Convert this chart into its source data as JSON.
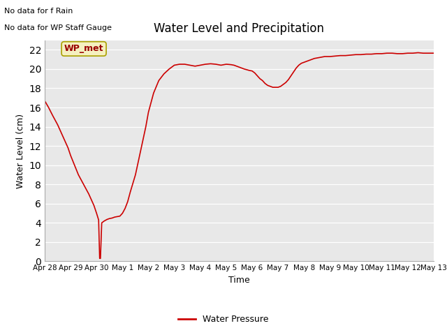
{
  "title": "Water Level and Precipitation",
  "xlabel": "Time",
  "ylabel": "Water Level (cm)",
  "ylim": [
    0,
    23
  ],
  "yticks": [
    0,
    2,
    4,
    6,
    8,
    10,
    12,
    14,
    16,
    18,
    20,
    22
  ],
  "fig_bg_color": "#ffffff",
  "plot_bg_color": "#e8e8e8",
  "line_color": "#cc0000",
  "legend_label": "Water Pressure",
  "no_data_text1": "No data for f Rain",
  "no_data_text2": "No data for WP Staff Gauge",
  "wp_met_label": "WP_met",
  "x_tick_labels": [
    "Apr 28",
    "Apr 29",
    "Apr 30",
    "May 1",
    "May 2",
    "May 3",
    "May 4",
    "May 5",
    "May 6",
    "May 7",
    "May 8",
    "May 9",
    "May 10",
    "May 11",
    "May 12",
    "May 13"
  ],
  "x_values": [
    0,
    1,
    2,
    3,
    4,
    5,
    6,
    7,
    8,
    9,
    10,
    11,
    12,
    13,
    14,
    15
  ],
  "water_level": {
    "x": [
      0.0,
      0.15,
      0.3,
      0.5,
      0.7,
      0.9,
      1.0,
      1.15,
      1.3,
      1.5,
      1.7,
      1.9,
      2.0,
      2.08,
      2.12,
      2.15,
      2.2,
      2.25,
      2.3,
      2.4,
      2.5,
      2.6,
      2.7,
      2.8,
      2.9,
      3.0,
      3.1,
      3.2,
      3.3,
      3.5,
      3.7,
      3.9,
      4.0,
      4.1,
      4.2,
      4.4,
      4.6,
      4.8,
      5.0,
      5.2,
      5.4,
      5.6,
      5.8,
      6.0,
      6.2,
      6.4,
      6.6,
      6.8,
      7.0,
      7.1,
      7.2,
      7.3,
      7.5,
      7.7,
      7.9,
      8.0,
      8.1,
      8.2,
      8.3,
      8.4,
      8.5,
      8.6,
      8.7,
      8.8,
      8.9,
      9.0,
      9.1,
      9.2,
      9.3,
      9.4,
      9.5,
      9.6,
      9.7,
      9.8,
      9.9,
      10.0,
      10.2,
      10.4,
      10.6,
      10.8,
      11.0,
      11.2,
      11.4,
      11.6,
      11.8,
      12.0,
      12.2,
      12.4,
      12.6,
      12.8,
      13.0,
      13.2,
      13.4,
      13.6,
      13.8,
      14.0,
      14.2,
      14.4,
      14.6,
      14.8,
      15.0
    ],
    "y": [
      16.7,
      16.0,
      15.2,
      14.2,
      13.0,
      11.8,
      11.0,
      10.0,
      9.0,
      8.0,
      7.0,
      5.8,
      5.0,
      4.3,
      0.3,
      0.3,
      4.0,
      4.1,
      4.2,
      4.35,
      4.45,
      4.5,
      4.6,
      4.65,
      4.7,
      5.0,
      5.5,
      6.2,
      7.2,
      9.0,
      11.5,
      14.0,
      15.5,
      16.5,
      17.5,
      18.8,
      19.5,
      20.0,
      20.4,
      20.5,
      20.5,
      20.4,
      20.3,
      20.4,
      20.5,
      20.55,
      20.5,
      20.4,
      20.5,
      20.48,
      20.45,
      20.4,
      20.2,
      20.0,
      19.85,
      19.8,
      19.6,
      19.3,
      19.0,
      18.8,
      18.5,
      18.3,
      18.2,
      18.1,
      18.1,
      18.1,
      18.2,
      18.4,
      18.6,
      18.9,
      19.3,
      19.7,
      20.1,
      20.4,
      20.6,
      20.7,
      20.9,
      21.1,
      21.2,
      21.3,
      21.3,
      21.35,
      21.4,
      21.4,
      21.45,
      21.5,
      21.5,
      21.55,
      21.55,
      21.6,
      21.6,
      21.65,
      21.65,
      21.6,
      21.6,
      21.65,
      21.65,
      21.7,
      21.65,
      21.65,
      21.65
    ]
  }
}
